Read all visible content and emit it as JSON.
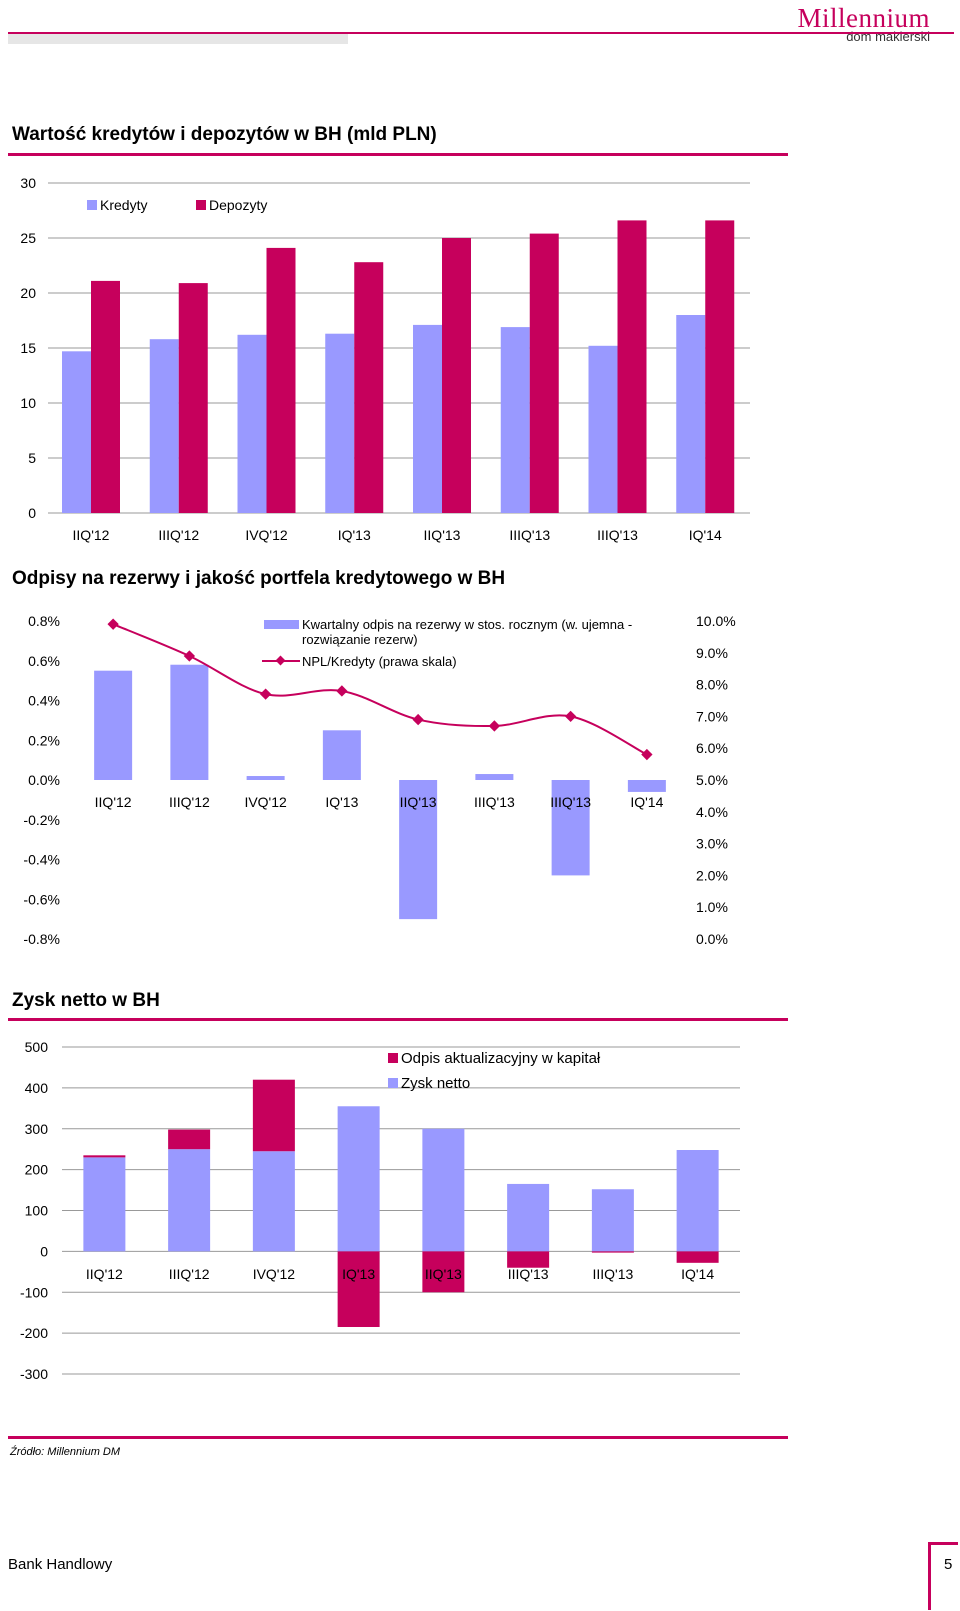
{
  "brand": {
    "name": "Millennium",
    "sub": "dom maklerski"
  },
  "source_note": "Źródło: Millennium DM",
  "footer": {
    "left": "Bank Handlowy",
    "page": "5"
  },
  "colors": {
    "accent": "#c6005c",
    "lilac": "#9999ff",
    "grid": "#999999"
  },
  "chart_data": [
    {
      "type": "bar",
      "title": "Wartość kredytów i depozytów w BH (mld PLN)",
      "categories": [
        "IIQ'12",
        "IIIQ'12",
        "IVQ'12",
        "IQ'13",
        "IIQ'13",
        "IIIQ'13",
        "IIIQ'13",
        "IQ'14"
      ],
      "series": [
        {
          "name": "Kredyty",
          "color": "#9999ff",
          "values": [
            14.7,
            15.8,
            16.2,
            16.3,
            17.1,
            16.9,
            15.2,
            18.0
          ]
        },
        {
          "name": "Depozyty",
          "color": "#c6005c",
          "values": [
            21.1,
            20.9,
            24.1,
            22.8,
            25.0,
            25.4,
            26.6,
            26.6
          ]
        }
      ],
      "y_ticks": [
        "0",
        "5",
        "10",
        "15",
        "20",
        "25",
        "30"
      ],
      "ylim": [
        0,
        30
      ],
      "grid": true,
      "legend": "top-left"
    },
    {
      "type": "bar",
      "title": "Odpisy na rezerwy i jakość portfela kredytowego w BH",
      "categories": [
        "IIQ'12",
        "IIIQ'12",
        "IVQ'12",
        "IQ'13",
        "IIQ'13",
        "IIIQ'13",
        "IIIQ'13",
        "IQ'14"
      ],
      "series": [
        {
          "name": "Kwartalny odpis na rezerwy w stos. rocznym (w. ujemna - rozwiązanie rezerw)",
          "kind": "bar",
          "color": "#9999ff",
          "values": [
            0.55,
            0.58,
            0.02,
            0.25,
            -0.7,
            0.03,
            -0.48,
            -0.06
          ]
        },
        {
          "name": "NPL/Kredyty (prawa skala)",
          "kind": "line",
          "axis": "right",
          "color": "#c6005c",
          "values": [
            9.9,
            8.9,
            7.7,
            7.8,
            6.9,
            6.7,
            7.0,
            5.8
          ]
        }
      ],
      "y_ticks": [
        "0.8%",
        "0.6%",
        "0.4%",
        "0.2%",
        "0.0%",
        "-0.2%",
        "-0.4%",
        "-0.6%",
        "-0.8%"
      ],
      "ylim": [
        -0.8,
        0.8
      ],
      "y2_ticks": [
        "10.0%",
        "9.0%",
        "8.0%",
        "7.0%",
        "6.0%",
        "5.0%",
        "4.0%",
        "3.0%",
        "2.0%",
        "1.0%",
        "0.0%"
      ],
      "y2lim": [
        0,
        10
      ],
      "grid": false,
      "legend": "top-center"
    },
    {
      "type": "bar",
      "stacked": true,
      "title": "Zysk netto w BH",
      "categories": [
        "IIQ'12",
        "IIIQ'12",
        "IVQ'12",
        "IQ'13",
        "IIQ'13",
        "IIIQ'13",
        "IIIQ'13",
        "IQ'14"
      ],
      "series": [
        {
          "name": "Zysk netto",
          "color": "#9999ff",
          "values": [
            230,
            250,
            245,
            355,
            300,
            165,
            152,
            248
          ]
        },
        {
          "name": "Odpis aktualizacyjny w kapitał",
          "color": "#c6005c",
          "values": [
            5,
            48,
            175,
            -185,
            -100,
            -40,
            -3,
            -28
          ]
        }
      ],
      "legend_order": [
        "Odpis aktualizacyjny w kapitał",
        "Zysk netto"
      ],
      "y_ticks": [
        "500",
        "400",
        "300",
        "200",
        "100",
        "0",
        "-100",
        "-200",
        "-300"
      ],
      "ylim": [
        -300,
        500
      ],
      "grid": true,
      "legend": "top-right"
    }
  ]
}
